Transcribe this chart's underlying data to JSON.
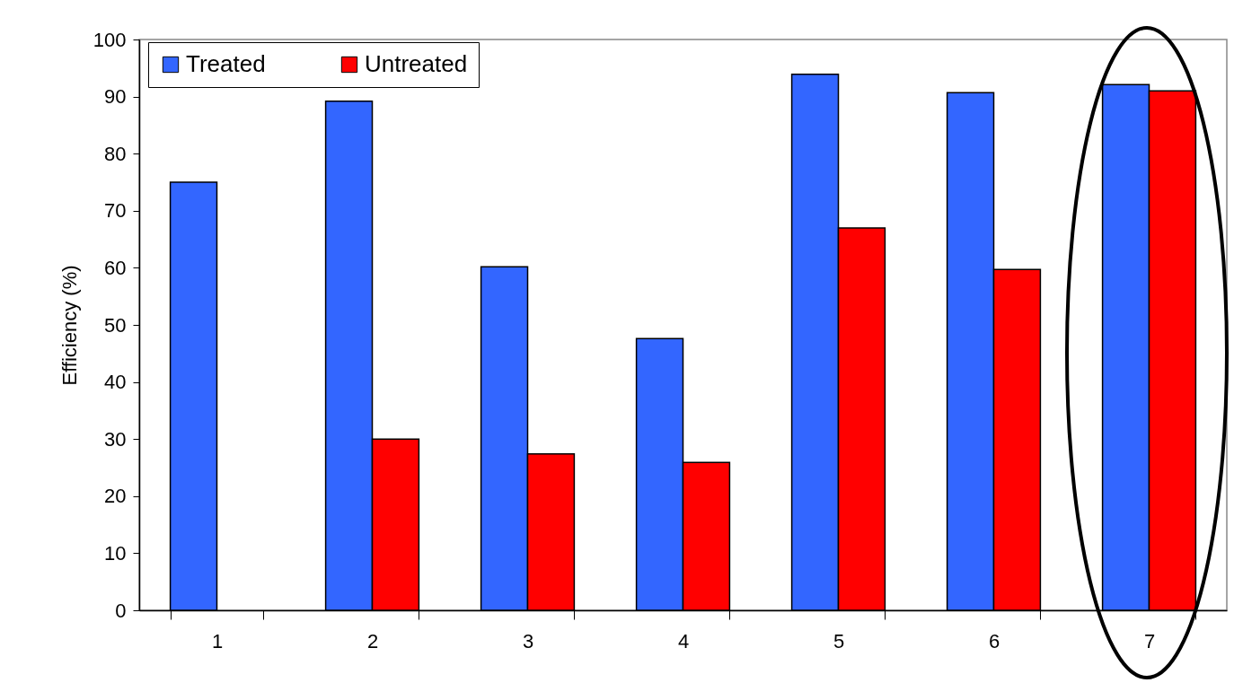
{
  "chart_data": {
    "type": "bar",
    "ylabel": "Efficiency (%)",
    "categories": [
      "1",
      "2",
      "3",
      "4",
      "5",
      "6",
      "7"
    ],
    "series": [
      {
        "name": "Treated",
        "color": "#3366ff",
        "values": [
          75.0,
          89.2,
          60.2,
          47.6,
          93.9,
          90.7,
          92.1
        ]
      },
      {
        "name": "Untreated",
        "color": "#ff0000",
        "values": [
          null,
          30.0,
          27.4,
          25.9,
          67.0,
          59.7,
          91.0
        ]
      }
    ],
    "ylim": [
      0,
      100
    ],
    "yticks": [
      0,
      10,
      20,
      30,
      40,
      50,
      60,
      70,
      80,
      90,
      100
    ],
    "grid": false,
    "legend": "top left"
  }
}
